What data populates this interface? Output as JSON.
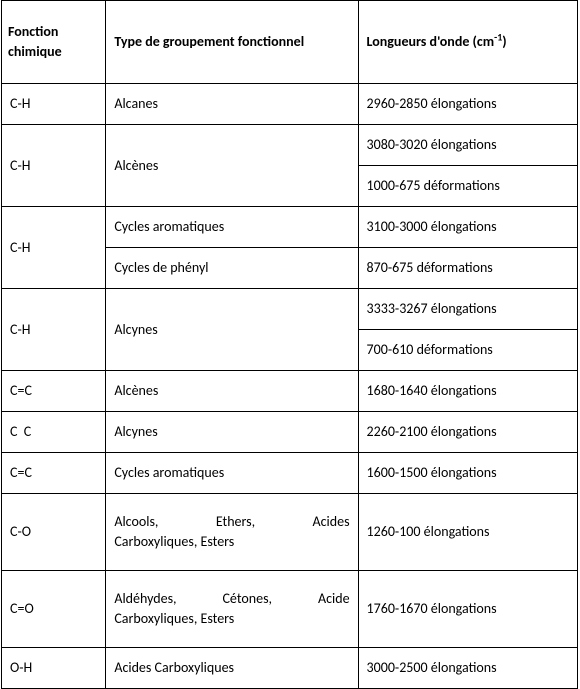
{
  "header": {
    "func_line1": "Fonction",
    "func_line2": "chimique",
    "type": "Type de groupement fonctionnel",
    "wave_prefix": "Longueurs d'onde (cm",
    "wave_sup": "-1",
    "wave_suffix": ")"
  },
  "rows": [
    {
      "func": "C-H",
      "type": "Alcanes",
      "wave": "2960-2850 élongations"
    },
    {
      "func": "C-H",
      "type": "Alcènes",
      "wave": "3080-3020 élongations"
    },
    {
      "func": "",
      "type": "",
      "wave": "1000-675 déformations"
    },
    {
      "func": "C-H",
      "type": "Cycles aromatiques",
      "wave": "3100-3000 élongations"
    },
    {
      "func": "",
      "type": "Cycles de phényl",
      "wave": "870-675 déformations"
    },
    {
      "func": "C-H",
      "type": "Alcynes",
      "wave": "3333-3267 élongations"
    },
    {
      "func": "",
      "type": "",
      "wave": "700-610 déformations"
    },
    {
      "func": "C=C",
      "type": "Alcènes",
      "wave": "1680-1640 élongations"
    },
    {
      "func": "C  C",
      "type": "Alcynes",
      "wave": "2260-2100 élongations"
    },
    {
      "func": "C=C",
      "type": "Cycles aromatiques",
      "wave": "1600-1500 élongations"
    },
    {
      "func": "C-O",
      "type_line1": "Alcools,",
      "type_mid1": "Ethers,",
      "type_end1": "Acides",
      "type_line2": "Carboxyliques, Esters",
      "wave": "1260-100 élongations"
    },
    {
      "func": "C=O",
      "type_line1": "Aldéhydes,",
      "type_mid1": "Cétones,",
      "type_end1": "Acide",
      "type_line2": "Carboxyliques, Esters",
      "wave": "1760-1670 élongations"
    },
    {
      "func": "O-H",
      "type": "Acides Carboxyliques",
      "wave": "3000-2500 élongations"
    }
  ]
}
